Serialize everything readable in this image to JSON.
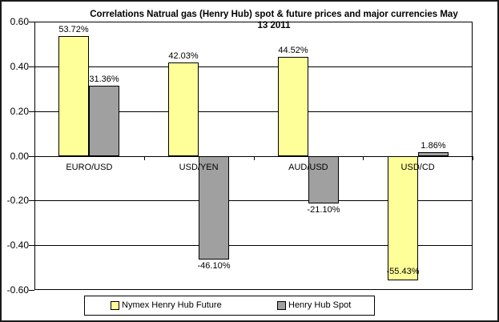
{
  "chart_data": {
    "type": "bar",
    "title": "Correlations Natrual gas (Henry Hub) spot & future prices and major currencies May 13 2011",
    "title_line1": "Correlations Natrual gas (Henry Hub) spot & future prices and major currencies May",
    "title_line2": "13 2011",
    "categories": [
      "EURO/USD",
      "USD/YEN",
      "AUD/USD",
      "USD/CD"
    ],
    "series": [
      {
        "name": "Nymex Henry Hub Future",
        "color": "#FFFF99",
        "values_pct": [
          53.72,
          42.03,
          44.52,
          -55.43
        ]
      },
      {
        "name": "Henry Hub Spot",
        "color": "#A0A0A0",
        "values_pct": [
          31.36,
          -46.1,
          -21.1,
          1.86
        ]
      }
    ],
    "data_labels": [
      [
        "53.72%",
        "42.03%",
        "44.52%",
        "-55.43%"
      ],
      [
        "31.36%",
        "-46.10%",
        "-21.10%",
        "1.86%"
      ]
    ],
    "y_axis": {
      "min": -0.6,
      "max": 0.6,
      "step": 0.2,
      "tick_labels": [
        "0.60",
        "0.40",
        "0.20",
        "0.00",
        "-0.20",
        "-0.40",
        "-0.60"
      ]
    },
    "grid": "horizontal",
    "legend_position": "bottom",
    "colors": {
      "future_series": "#FFFF99",
      "spot_series": "#A0A0A0",
      "bar_border": "#000000",
      "axis": "#000000",
      "background": "#FFFFFF"
    }
  }
}
